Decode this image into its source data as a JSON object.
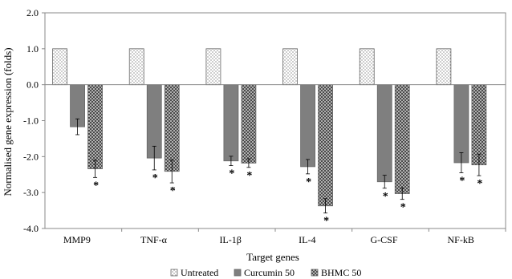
{
  "chart_data": {
    "type": "bar",
    "title": "",
    "xlabel": "Target genes",
    "ylabel": "Normalised gene expression (folds)",
    "ylim": [
      -4.0,
      2.0
    ],
    "yticks": [
      2.0,
      1.0,
      0.0,
      -1.0,
      -2.0,
      -3.0,
      -4.0
    ],
    "ytick_labels": [
      "2.0",
      "1.0",
      "0.0",
      "-1.0",
      "-2.0",
      "-3.0",
      "-4.0"
    ],
    "categories": [
      "MMP9",
      "TNF-α",
      "IL-1β",
      "IL-4",
      "G-CSF",
      "NF-kB"
    ],
    "series": [
      {
        "name": "Untreated",
        "values": [
          1.0,
          1.0,
          1.0,
          1.0,
          1.0,
          1.0
        ],
        "errors": [
          0,
          0,
          0,
          0,
          0,
          0
        ],
        "significant": [
          false,
          false,
          false,
          false,
          false,
          false
        ],
        "pattern": "dots",
        "color": "#ffffff"
      },
      {
        "name": "Curcumin 50",
        "values": [
          -1.17,
          -2.04,
          -2.12,
          -2.28,
          -2.7,
          -2.17
        ],
        "errors": [
          0.22,
          0.33,
          0.13,
          0.2,
          0.18,
          0.28
        ],
        "significant": [
          false,
          true,
          true,
          true,
          true,
          true
        ],
        "pattern": "solid",
        "color": "#7f7f7f"
      },
      {
        "name": "BHMC 50",
        "values": [
          -2.34,
          -2.41,
          -2.18,
          -3.37,
          -3.03,
          -2.23
        ],
        "errors": [
          0.24,
          0.32,
          0.12,
          0.2,
          0.16,
          0.3
        ],
        "significant": [
          true,
          true,
          true,
          true,
          true,
          true
        ],
        "pattern": "checker",
        "color": "#8c8c8c"
      }
    ],
    "significance_marker": "*",
    "grid": false,
    "legend_position": "bottom"
  }
}
